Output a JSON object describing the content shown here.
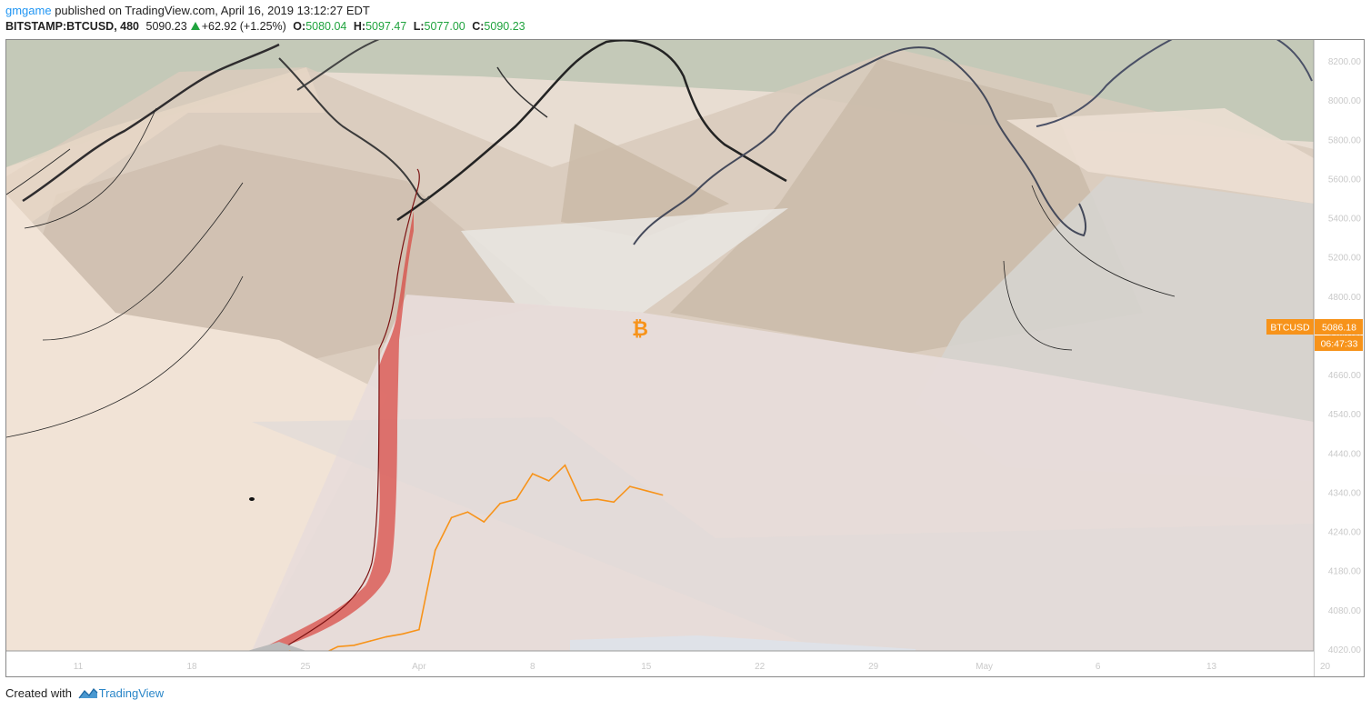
{
  "header": {
    "user": "gmgame",
    "published_text": " published on TradingView.com, April 16, 2019 13:12:27 EDT",
    "symbol": "BITSTAMP:BTCUSD, 480",
    "last": "5090.23",
    "change": "+62.92 (+1.25%)",
    "open_label": "O:",
    "open": "5080.04",
    "high_label": "H:",
    "high": "5097.47",
    "low_label": "L:",
    "low": "5077.00",
    "close_label": "C:",
    "close": "5090.23"
  },
  "price_tag": {
    "symbol": "BTCUSD",
    "price": "5086.18",
    "countdown": "06:47:33",
    "color": "#f7931a"
  },
  "footer": {
    "created_with": "Created with",
    "brand": "TradingView"
  },
  "chart_data": {
    "type": "line",
    "series": [
      {
        "x": [
          "2019-03-24",
          "2019-03-25",
          "2019-03-26",
          "2019-03-27",
          "2019-03-28",
          "2019-03-29",
          "2019-03-30",
          "2019-03-31",
          "2019-04-01",
          "2019-04-02",
          "2019-04-03",
          "2019-04-04",
          "2019-04-05",
          "2019-04-06",
          "2019-04-07",
          "2019-04-08",
          "2019-04-09",
          "2019-04-10",
          "2019-04-11",
          "2019-04-12",
          "2019-04-13",
          "2019-04-14",
          "2019-04-15",
          "2019-04-16"
        ],
        "y": [
          3990,
          3975,
          3965,
          4020,
          4030,
          4060,
          4090,
          4110,
          4140,
          4700,
          4930,
          4970,
          4900,
          5030,
          5060,
          5240,
          5190,
          5300,
          5050,
          5060,
          5040,
          5150,
          5120,
          5090
        ]
      }
    ],
    "ylim": [
      3990,
      8300
    ],
    "y_ticks": [
      "8200.00",
      "8000.00",
      "5800.00",
      "5600.00",
      "5400.00",
      "5200.00",
      "4800.00",
      "4780.00",
      "4660.00",
      "4540.00",
      "4440.00",
      "4340.00",
      "4240.00",
      "4180.00",
      "4080.00",
      "4020.00"
    ],
    "x_ticks": [
      "11",
      "18",
      "25",
      "Apr",
      "8",
      "15",
      "22",
      "29",
      "May",
      "6",
      "13",
      "20"
    ],
    "line_color": "#f7931a",
    "annotation": "bitcoin-icon"
  }
}
